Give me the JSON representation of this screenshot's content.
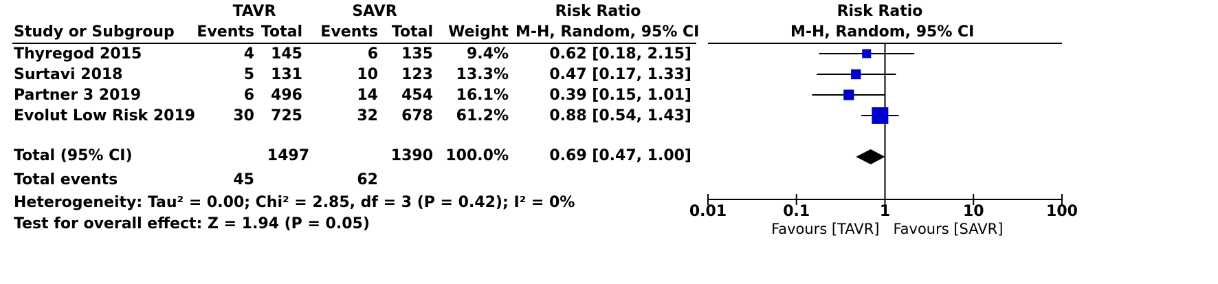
{
  "headers": {
    "group1": "TAVR",
    "group2": "SAVR",
    "rr_table": "Risk Ratio",
    "rr_plot": "Risk Ratio",
    "study": "Study or Subgroup",
    "events1": "Events",
    "total1": "Total",
    "events2": "Events",
    "total2": "Total",
    "weight": "Weight",
    "method_table": "M-H, Random, 95% CI",
    "method_plot": "M-H, Random, 95% CI"
  },
  "studies": [
    {
      "name": "Thyregod 2015",
      "e1": "4",
      "t1": "145",
      "e2": "6",
      "t2": "135",
      "weight": "9.4%",
      "ci_text": "0.62 [0.18, 2.15]"
    },
    {
      "name": "Surtavi 2018",
      "e1": "5",
      "t1": "131",
      "e2": "10",
      "t2": "123",
      "weight": "13.3%",
      "ci_text": "0.47 [0.17, 1.33]"
    },
    {
      "name": "Partner 3 2019",
      "e1": "6",
      "t1": "496",
      "e2": "14",
      "t2": "454",
      "weight": "16.1%",
      "ci_text": "0.39 [0.15, 1.01]"
    },
    {
      "name": "Evolut Low Risk 2019",
      "e1": "30",
      "t1": "725",
      "e2": "32",
      "t2": "678",
      "weight": "61.2%",
      "ci_text": "0.88 [0.54, 1.43]"
    }
  ],
  "total": {
    "label": "Total (95% CI)",
    "t1": "1497",
    "t2": "1390",
    "weight": "100.0%",
    "ci_text": "0.69 [0.47, 1.00]"
  },
  "total_events": {
    "label": "Total events",
    "e1": "45",
    "e2": "62"
  },
  "heterogeneity": "Heterogeneity: Tau² = 0.00; Chi² = 2.85, df = 3 (P = 0.42); I² = 0%",
  "overall_effect": "Test for overall effect: Z = 1.94 (P = 0.05)",
  "colors": {
    "study_marker": "#0000cc",
    "summary_marker": "#000000",
    "line": "#000000"
  },
  "chart_data": {
    "type": "forest",
    "x_scale": "log",
    "xlim": [
      0.01,
      100
    ],
    "x_ticks": [
      0.01,
      0.1,
      1,
      10,
      100
    ],
    "x_tick_labels": [
      "0.01",
      "0.1",
      "1",
      "10",
      "100"
    ],
    "favours_left": "Favours [TAVR]",
    "favours_right": "Favours [SAVR]",
    "points": [
      {
        "study": "Thyregod 2015",
        "rr": 0.62,
        "lo": 0.18,
        "hi": 2.15,
        "weight": 9.4
      },
      {
        "study": "Surtavi 2018",
        "rr": 0.47,
        "lo": 0.17,
        "hi": 1.33,
        "weight": 13.3
      },
      {
        "study": "Partner 3 2019",
        "rr": 0.39,
        "lo": 0.15,
        "hi": 1.01,
        "weight": 16.1
      },
      {
        "study": "Evolut Low Risk 2019",
        "rr": 0.88,
        "lo": 0.54,
        "hi": 1.43,
        "weight": 61.2
      }
    ],
    "summary": {
      "rr": 0.69,
      "lo": 0.47,
      "hi": 1.0
    }
  }
}
